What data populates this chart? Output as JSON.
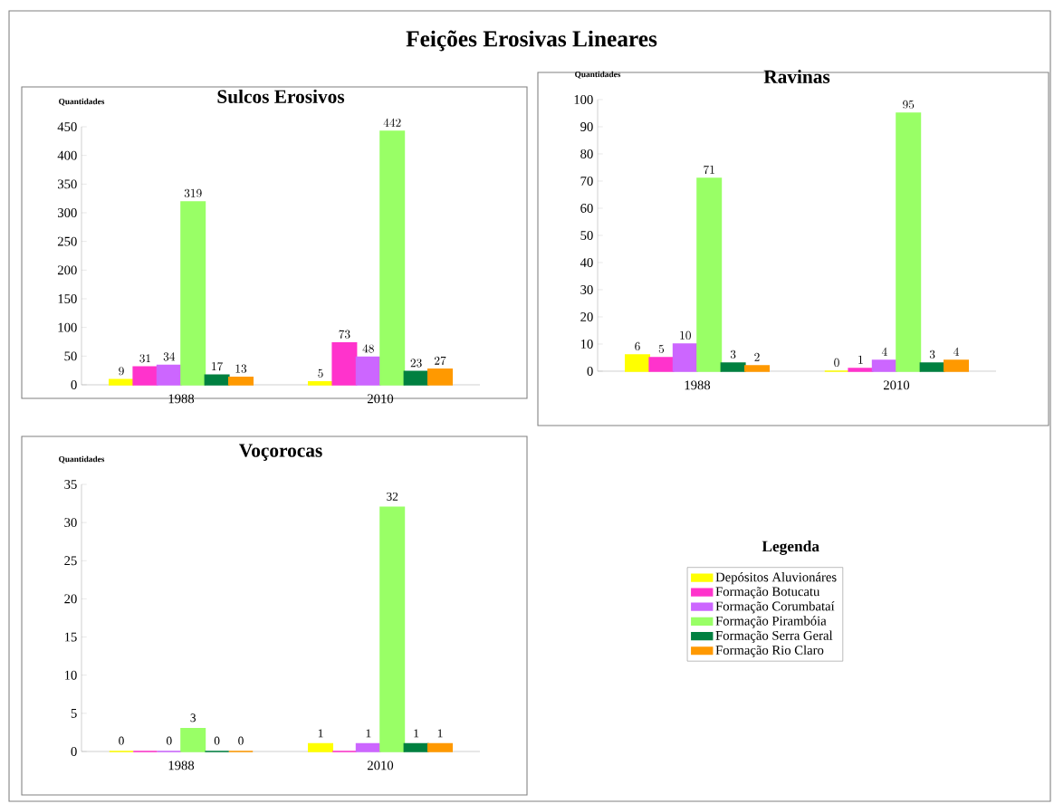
{
  "chart_data": [
    {
      "type": "bar",
      "title": "Feições Erosivas Lineares",
      "subtitle": "Sulcos Erosivos",
      "ylabel": "Quantidades",
      "categories": [
        "1988",
        "2010"
      ],
      "ylim": [
        0,
        450
      ],
      "yticks": [
        0,
        50,
        100,
        150,
        200,
        250,
        300,
        350,
        400,
        450
      ],
      "data_labels": true,
      "grid": false,
      "series": [
        {
          "color": "#ffff00",
          "values": [
            9,
            5
          ]
        },
        {
          "color": "#ff33cc",
          "values": [
            31,
            73
          ]
        },
        {
          "color": "#cc66ff",
          "values": [
            34,
            48
          ]
        },
        {
          "color": "#99ff66",
          "values": [
            319,
            442
          ]
        },
        {
          "color": "#008040",
          "values": [
            17,
            23
          ]
        },
        {
          "color": "#ff9900",
          "values": [
            13,
            27
          ]
        }
      ]
    },
    {
      "type": "bar",
      "title": "Ravinas",
      "ylabel": "Quantidades",
      "categories": [
        "1988",
        "2010"
      ],
      "ylim": [
        0,
        100
      ],
      "yticks": [
        0,
        10,
        20,
        30,
        40,
        50,
        60,
        70,
        80,
        90,
        100
      ],
      "data_labels": true,
      "grid": false,
      "series": [
        {
          "color": "#ffff00",
          "values": [
            6,
            0
          ]
        },
        {
          "color": "#ff33cc",
          "values": [
            5,
            1
          ]
        },
        {
          "color": "#cc66ff",
          "values": [
            10,
            4
          ]
        },
        {
          "color": "#99ff66",
          "values": [
            71,
            95
          ]
        },
        {
          "color": "#008040",
          "values": [
            3,
            3
          ]
        },
        {
          "color": "#ff9900",
          "values": [
            2,
            4
          ]
        }
      ]
    },
    {
      "type": "bar",
      "title": "Voçorocas",
      "ylabel": "Quantidades",
      "categories": [
        "1988",
        "2010"
      ],
      "ylim": [
        0,
        35
      ],
      "yticks": [
        0,
        5,
        10,
        15,
        20,
        25,
        30,
        35
      ],
      "grid": false,
      "legend": "right",
      "legend_title": "Legenda",
      "series": [
        {
          "name": "Depósitos Aluvionáres",
          "color": "#ffff00",
          "values": [
            0,
            1
          ],
          "value_labels": [
            "0",
            "1"
          ]
        },
        {
          "name": "Formação  Botucatu",
          "color": "#ff33cc",
          "values": [
            0,
            0
          ],
          "value_labels": [
            null,
            null
          ]
        },
        {
          "name": "Formação Corumbataí",
          "color": "#cc66ff",
          "values": [
            0,
            1
          ],
          "value_labels": [
            "0",
            "1"
          ]
        },
        {
          "name": "Formação Pirambóia",
          "color": "#99ff66",
          "values": [
            3,
            32
          ],
          "value_labels": [
            "3",
            "32"
          ]
        },
        {
          "name": "Formação Serra Geral",
          "color": "#008040",
          "values": [
            0,
            1
          ],
          "value_labels": [
            "0",
            "1"
          ]
        },
        {
          "name": "Formação Rio Claro",
          "color": "#ff9900",
          "values": [
            0,
            1
          ],
          "value_labels": [
            "0",
            "1"
          ]
        }
      ]
    }
  ]
}
